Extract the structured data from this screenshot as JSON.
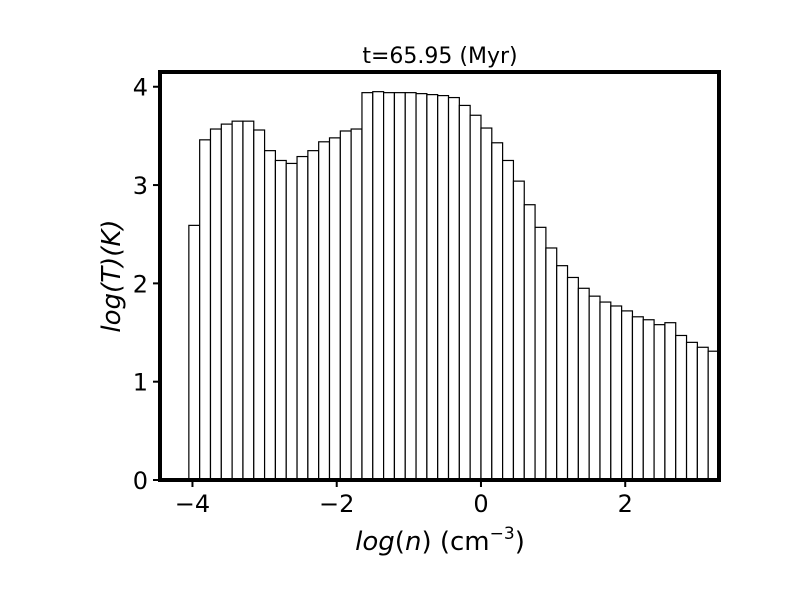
{
  "chart_data": {
    "type": "bar",
    "title": "t=65.95 (Myr)",
    "xlabel": {
      "func": "log",
      "arg": "n",
      "unit_base": "cm",
      "unit_exp": "−3"
    },
    "ylabel": {
      "func1": "log",
      "arg1": "T",
      "func2": "",
      "arg2": "K"
    },
    "xlim": [
      -4.45,
      3.3
    ],
    "ylim": [
      0,
      4.15
    ],
    "bin_start": -4.05,
    "bin_width": 0.15,
    "values": [
      2.59,
      3.46,
      3.57,
      3.62,
      3.65,
      3.65,
      3.56,
      3.35,
      3.25,
      3.22,
      3.29,
      3.35,
      3.44,
      3.48,
      3.55,
      3.57,
      3.94,
      3.95,
      3.94,
      3.94,
      3.94,
      3.93,
      3.92,
      3.91,
      3.89,
      3.81,
      3.71,
      3.58,
      3.43,
      3.25,
      3.04,
      2.8,
      2.57,
      2.36,
      2.18,
      2.06,
      1.95,
      1.87,
      1.81,
      1.77,
      1.72,
      1.66,
      1.63,
      1.58,
      1.6,
      1.47,
      1.4,
      1.35,
      1.31
    ],
    "xticks": [
      -4,
      -2,
      0,
      2
    ],
    "xtick_labels": [
      "−4",
      "−2",
      "0",
      "2"
    ],
    "yticks": [
      0,
      1,
      2,
      3,
      4
    ],
    "ytick_labels": [
      "0",
      "1",
      "2",
      "3",
      "4"
    ],
    "grid": false,
    "bar_fill": "#ffffff",
    "bar_edge": "#000000"
  }
}
